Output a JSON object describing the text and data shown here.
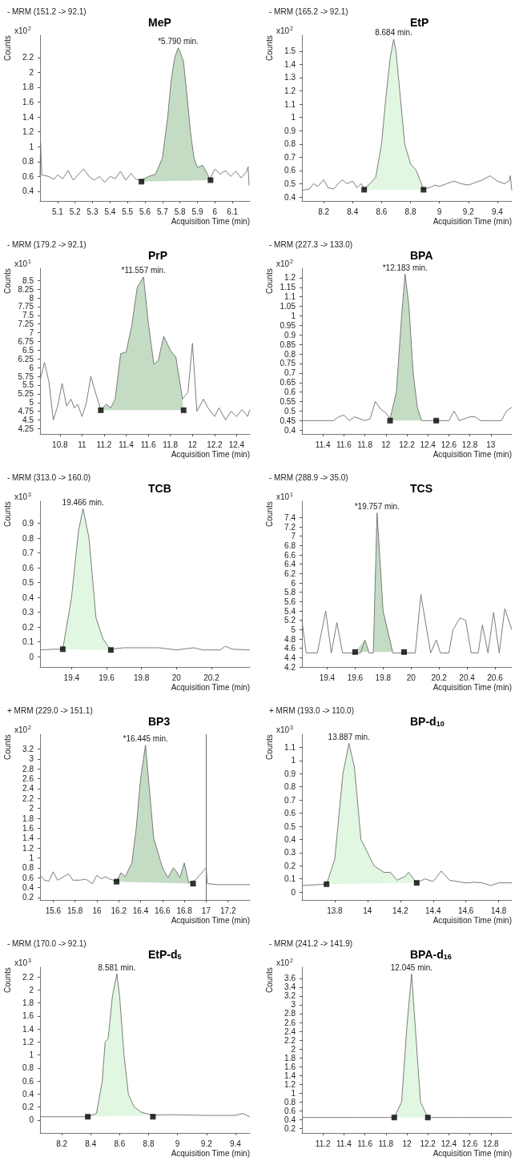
{
  "chart_data": [
    {
      "type": "line",
      "title": "MeP",
      "subtitle": "- MRM (151.2 -> 92.1)",
      "xlabel": "Acquisition Time (min)",
      "ylabel": "Counts",
      "annotations": [
        "x10$^{2}$",
        {
          "text": "*5.790 min.",
          "x": 5.79,
          "y": 2.33
        }
      ],
      "xlim": [
        5.0,
        6.2
      ],
      "xticks": [
        5.1,
        5.2,
        5.3,
        5.4,
        5.5,
        5.6,
        5.7,
        5.8,
        5.9,
        6,
        6.1
      ],
      "ylim": [
        0.27,
        2.5
      ],
      "yticks": [
        0.4,
        0.6,
        0.8,
        1,
        1.2,
        1.4,
        1.6,
        1.8,
        2,
        2.2
      ],
      "series": [
        {
          "type": "line",
          "marker": "none",
          "color": "#6e6e6e",
          "x": [
            5.0,
            5.003,
            5.01,
            5.05,
            5.08,
            5.1,
            5.13,
            5.16,
            5.19,
            5.22,
            5.25,
            5.28,
            5.31,
            5.34,
            5.37,
            5.4,
            5.43,
            5.46,
            5.49,
            5.52,
            5.55,
            5.58,
            5.62,
            5.66,
            5.7,
            5.73,
            5.75,
            5.77,
            5.79,
            5.8,
            5.82,
            5.84,
            5.86,
            5.88,
            5.9,
            5.93,
            5.96,
            5.97,
            6.0,
            6.03,
            6.06,
            6.09,
            6.12,
            6.15,
            6.18,
            6.19,
            6.195
          ],
          "values": [
            0.6,
            1.05,
            0.62,
            0.6,
            0.56,
            0.62,
            0.57,
            0.68,
            0.55,
            0.63,
            0.7,
            0.6,
            0.55,
            0.6,
            0.52,
            0.6,
            0.57,
            0.67,
            0.55,
            0.64,
            0.56,
            0.55,
            0.6,
            0.63,
            0.85,
            1.4,
            1.9,
            2.2,
            2.33,
            2.28,
            2.15,
            1.7,
            1.2,
            0.85,
            0.72,
            0.75,
            0.62,
            0.56,
            0.7,
            0.63,
            0.68,
            0.6,
            0.67,
            0.58,
            0.66,
            0.73,
            0.48
          ]
        },
        {
          "type": "area",
          "color": "#c4dcc4",
          "x": [
            5.58,
            5.58,
            5.62,
            5.66,
            5.7,
            5.73,
            5.75,
            5.77,
            5.79,
            5.8,
            5.82,
            5.84,
            5.86,
            5.88,
            5.9,
            5.93,
            5.96,
            5.97,
            5.975
          ],
          "values": [
            0.53,
            0.55,
            0.6,
            0.63,
            0.85,
            1.4,
            1.9,
            2.2,
            2.33,
            2.28,
            2.15,
            1.7,
            1.2,
            0.85,
            0.72,
            0.75,
            0.62,
            0.56,
            0.55
          ]
        },
        {
          "type": "scatter",
          "marker": "square",
          "color": "#000000",
          "x": [
            5.58,
            5.975
          ],
          "values": [
            0.53,
            0.55
          ]
        }
      ]
    },
    {
      "type": "line",
      "title": "EtP",
      "subtitle": "- MRM (165.2 -> 92.1)",
      "xlabel": "Acquisition Time (min)",
      "ylabel": "Counts",
      "annotations": [
        "x10$^{2}$",
        {
          "text": "8.684 min.",
          "x": 8.684,
          "y": 1.59
        }
      ],
      "xlim": [
        8.05,
        9.5
      ],
      "xticks": [
        8.2,
        8.4,
        8.6,
        8.8,
        9,
        9.2,
        9.4
      ],
      "ylim": [
        0.37,
        1.62
      ],
      "yticks": [
        0.4,
        0.5,
        0.6,
        0.7,
        0.8,
        0.9,
        1,
        1.1,
        1.2,
        1.3,
        1.4,
        1.5
      ],
      "series": [
        {
          "type": "line",
          "marker": "none",
          "color": "#6e6e6e",
          "x": [
            8.05,
            8.1,
            8.13,
            8.16,
            8.2,
            8.23,
            8.27,
            8.3,
            8.33,
            8.36,
            8.4,
            8.43,
            8.46,
            8.48,
            8.52,
            8.56,
            8.6,
            8.63,
            8.66,
            8.684,
            8.7,
            8.73,
            8.76,
            8.8,
            8.84,
            8.89,
            8.93,
            8.97,
            9.0,
            9.05,
            9.1,
            9.15,
            9.2,
            9.25,
            9.3,
            9.35,
            9.4,
            9.45,
            9.48,
            9.49,
            9.5
          ],
          "values": [
            0.45,
            0.46,
            0.5,
            0.48,
            0.53,
            0.47,
            0.46,
            0.5,
            0.53,
            0.5,
            0.52,
            0.47,
            0.5,
            0.46,
            0.5,
            0.55,
            0.8,
            1.15,
            1.45,
            1.59,
            1.5,
            1.15,
            0.8,
            0.65,
            0.6,
            0.46,
            0.47,
            0.49,
            0.48,
            0.5,
            0.52,
            0.5,
            0.49,
            0.51,
            0.53,
            0.56,
            0.52,
            0.5,
            0.52,
            0.56,
            0.45
          ]
        },
        {
          "type": "area",
          "color": "#e2f7e2",
          "x": [
            8.48,
            8.48,
            8.52,
            8.56,
            8.6,
            8.63,
            8.66,
            8.684,
            8.7,
            8.73,
            8.76,
            8.8,
            8.84,
            8.89,
            8.89
          ],
          "values": [
            0.455,
            0.46,
            0.5,
            0.55,
            0.8,
            1.15,
            1.45,
            1.59,
            1.5,
            1.15,
            0.8,
            0.65,
            0.6,
            0.46,
            0.455
          ]
        },
        {
          "type": "scatter",
          "marker": "square",
          "color": "#000000",
          "x": [
            8.48,
            8.89
          ],
          "values": [
            0.455,
            0.455
          ]
        }
      ]
    },
    {
      "type": "line",
      "title": "PrP",
      "subtitle": "- MRM (179.2 -> 92.1)",
      "xlabel": "Acquisition Time (min)",
      "ylabel": "Counts",
      "annotations": [
        "x10$^{1}$",
        {
          "text": "*11.557 min.",
          "x": 11.557,
          "y": 8.6
        }
      ],
      "xlim": [
        10.62,
        12.52
      ],
      "xticks": [
        10.8,
        11,
        11.2,
        11.4,
        11.6,
        11.8,
        12,
        12.2,
        12.4
      ],
      "ylim": [
        4.1,
        8.85
      ],
      "yticks": [
        4.25,
        4.5,
        4.75,
        5,
        5.25,
        5.5,
        5.75,
        6,
        6.25,
        6.5,
        6.75,
        7,
        7.25,
        7.5,
        7.75,
        8,
        8.25,
        8.5
      ],
      "series": [
        {
          "type": "line",
          "marker": "none",
          "color": "#6e6e6e",
          "x": [
            10.62,
            10.66,
            10.7,
            10.74,
            10.78,
            10.82,
            10.86,
            10.9,
            10.93,
            10.96,
            11.0,
            11.04,
            11.08,
            11.13,
            11.17,
            11.22,
            11.26,
            11.3,
            11.35,
            11.4,
            11.45,
            11.5,
            11.557,
            11.6,
            11.65,
            11.69,
            11.74,
            11.8,
            11.85,
            11.91,
            11.96,
            12.0,
            12.04,
            12.1,
            12.14,
            12.2,
            12.24,
            12.3,
            12.35,
            12.4,
            12.45,
            12.5,
            12.52
          ],
          "values": [
            5.65,
            6.15,
            5.6,
            4.5,
            4.9,
            5.55,
            4.9,
            5.1,
            4.85,
            4.95,
            4.6,
            5.0,
            5.75,
            5.2,
            4.8,
            4.95,
            4.85,
            5.1,
            6.4,
            6.45,
            7.2,
            8.3,
            8.6,
            7.3,
            6.1,
            6.2,
            6.9,
            6.5,
            6.3,
            5.1,
            5.3,
            6.7,
            4.75,
            5.1,
            4.85,
            4.6,
            4.85,
            4.5,
            4.75,
            4.6,
            4.8,
            4.6,
            4.8
          ]
        },
        {
          "type": "area",
          "color": "#c4dcc4",
          "x": [
            11.17,
            11.17,
            11.22,
            11.26,
            11.3,
            11.35,
            11.4,
            11.45,
            11.5,
            11.557,
            11.6,
            11.65,
            11.69,
            11.74,
            11.8,
            11.85,
            11.91,
            11.92
          ],
          "values": [
            4.78,
            4.8,
            4.95,
            4.85,
            5.1,
            6.4,
            6.45,
            7.2,
            8.3,
            8.6,
            7.3,
            6.1,
            6.2,
            6.9,
            6.5,
            6.3,
            5.1,
            4.78
          ]
        },
        {
          "type": "scatter",
          "marker": "square",
          "color": "#000000",
          "x": [
            11.17,
            11.92
          ],
          "values": [
            4.78,
            4.78
          ]
        }
      ]
    },
    {
      "type": "line",
      "title": "BPA",
      "subtitle": "- MRM (227.3 -> 133.0)",
      "xlabel": "Acquisition Time (min)",
      "ylabel": "Counts",
      "annotations": [
        "x10$^{2}$",
        {
          "text": "*12.183 min.",
          "x": 12.183,
          "y": 1.22
        }
      ],
      "xlim": [
        11.2,
        13.2
      ],
      "xticks": [
        11.4,
        11.6,
        11.8,
        12,
        12.2,
        12.4,
        12.6,
        12.8,
        13
      ],
      "ylim": [
        0.38,
        1.25
      ],
      "yticks": [
        0.4,
        0.45,
        0.5,
        0.55,
        0.6,
        0.65,
        0.7,
        0.75,
        0.8,
        0.85,
        0.9,
        0.95,
        1,
        1.05,
        1.1,
        1.15,
        1.2
      ],
      "series": [
        {
          "type": "line",
          "marker": "none",
          "color": "#6e6e6e",
          "x": [
            11.2,
            11.5,
            11.55,
            11.6,
            11.65,
            11.7,
            11.75,
            11.8,
            11.85,
            11.9,
            11.95,
            12.0,
            12.04,
            12.1,
            12.15,
            12.183,
            12.22,
            12.26,
            12.3,
            12.34,
            12.48,
            12.6,
            12.65,
            12.7,
            12.75,
            12.8,
            12.85,
            12.9,
            13.0,
            13.1,
            13.15,
            13.2
          ],
          "values": [
            0.45,
            0.45,
            0.47,
            0.48,
            0.45,
            0.47,
            0.46,
            0.45,
            0.46,
            0.55,
            0.51,
            0.49,
            0.46,
            0.6,
            1.0,
            1.22,
            1.05,
            0.7,
            0.52,
            0.45,
            0.45,
            0.45,
            0.5,
            0.45,
            0.46,
            0.47,
            0.47,
            0.45,
            0.45,
            0.45,
            0.5,
            0.52
          ]
        },
        {
          "type": "area",
          "color": "#c4dcc4",
          "x": [
            12.04,
            12.04,
            12.1,
            12.15,
            12.183,
            12.22,
            12.26,
            12.3,
            12.34,
            12.48
          ],
          "values": [
            0.45,
            0.46,
            0.6,
            1.0,
            1.22,
            1.05,
            0.7,
            0.52,
            0.45,
            0.45
          ]
        },
        {
          "type": "scatter",
          "marker": "square",
          "color": "#000000",
          "x": [
            12.04,
            12.48
          ],
          "values": [
            0.45,
            0.45
          ]
        }
      ]
    },
    {
      "type": "line",
      "title": "TCB",
      "subtitle": "- MRM (313.0 -> 160.0)",
      "xlabel": "Acquisition Time (min)",
      "ylabel": "Counts",
      "annotations": [
        "x10$^{3}$",
        {
          "text": "19.466 min.",
          "x": 19.466,
          "y": 1.0
        }
      ],
      "xlim": [
        19.22,
        20.42
      ],
      "xticks": [
        19.4,
        19.6,
        19.8,
        20,
        20.2
      ],
      "ylim": [
        -0.07,
        1.05
      ],
      "yticks": [
        0,
        0.1,
        0.2,
        0.3,
        0.4,
        0.5,
        0.6,
        0.7,
        0.8,
        0.9
      ],
      "series": [
        {
          "type": "line",
          "marker": "none",
          "color": "#6e6e6e",
          "x": [
            19.22,
            19.3,
            19.35,
            19.4,
            19.44,
            19.466,
            19.5,
            19.54,
            19.58,
            19.62,
            19.7,
            19.8,
            19.9,
            20.0,
            20.1,
            20.15,
            20.25,
            20.28,
            20.32,
            20.42
          ],
          "values": [
            0.045,
            0.05,
            0.05,
            0.4,
            0.85,
            1.0,
            0.8,
            0.26,
            0.12,
            0.05,
            0.06,
            0.06,
            0.06,
            0.045,
            0.06,
            0.045,
            0.045,
            0.07,
            0.05,
            0.045
          ]
        },
        {
          "type": "area",
          "color": "#e2f7e2",
          "x": [
            19.35,
            19.4,
            19.44,
            19.466,
            19.5,
            19.54,
            19.58,
            19.62,
            19.625
          ],
          "values": [
            0.05,
            0.4,
            0.85,
            1.0,
            0.8,
            0.26,
            0.12,
            0.05,
            0.045
          ]
        },
        {
          "type": "scatter",
          "marker": "square",
          "color": "#000000",
          "x": [
            19.35,
            19.625
          ],
          "values": [
            0.05,
            0.045
          ]
        }
      ]
    },
    {
      "type": "line",
      "title": "TCS",
      "subtitle": "- MRM (288.9 -> 35.0)",
      "xlabel": "Acquisition Time (min)",
      "ylabel": "Counts",
      "annotations": [
        "x10$^{1}$",
        {
          "text": "*19.757 min.",
          "x": 19.757,
          "y": 7.5
        }
      ],
      "xlim": [
        19.22,
        20.72
      ],
      "xticks": [
        19.4,
        19.6,
        19.8,
        20,
        20.2,
        20.4,
        20.6
      ],
      "ylim": [
        4.2,
        7.75
      ],
      "yticks": [
        4.2,
        4.4,
        4.6,
        4.8,
        5,
        5.2,
        5.4,
        5.6,
        5.8,
        6,
        6.2,
        6.4,
        6.6,
        6.8,
        7,
        7.2,
        7.4
      ],
      "series": [
        {
          "type": "line",
          "marker": "none",
          "color": "#6e6e6e",
          "x": [
            19.22,
            19.25,
            19.33,
            19.39,
            19.43,
            19.47,
            19.51,
            19.6,
            19.64,
            19.67,
            19.7,
            19.73,
            19.757,
            19.8,
            19.87,
            20.03,
            20.07,
            20.14,
            20.18,
            20.21,
            20.27,
            20.3,
            20.35,
            20.39,
            20.43,
            20.48,
            20.51,
            20.55,
            20.59,
            20.63,
            20.67,
            20.72
          ],
          "values": [
            5.2,
            4.5,
            4.5,
            5.4,
            4.5,
            5.15,
            4.5,
            4.5,
            4.5,
            4.78,
            4.5,
            4.5,
            7.5,
            5.4,
            4.5,
            4.5,
            5.75,
            4.5,
            4.78,
            4.5,
            4.5,
            5.0,
            5.25,
            5.2,
            4.5,
            4.5,
            5.1,
            4.5,
            5.37,
            4.5,
            5.45,
            5.0
          ]
        },
        {
          "type": "area",
          "color": "#c4dcc4",
          "x": [
            19.6,
            19.67,
            19.7,
            19.73,
            19.757,
            19.8,
            19.87,
            19.95
          ],
          "values": [
            4.52,
            4.78,
            4.52,
            4.52,
            7.5,
            5.4,
            4.52,
            4.52
          ]
        },
        {
          "type": "scatter",
          "marker": "square",
          "color": "#000000",
          "x": [
            19.6,
            19.95
          ],
          "values": [
            4.52,
            4.52
          ]
        }
      ]
    },
    {
      "type": "line",
      "title": "BP3",
      "subtitle": "+ MRM (229.0 -> 151.1)",
      "xlabel": "Acquisition Time (min)",
      "ylabel": "Counts",
      "annotations": [
        "x10$^{2}$",
        {
          "text": "*16.445 min.",
          "x": 16.445,
          "y": 3.28
        }
      ],
      "xlim": [
        15.48,
        17.4
      ],
      "xticks": [
        15.6,
        15.8,
        16,
        16.2,
        16.4,
        16.6,
        16.8,
        17,
        17.2
      ],
      "ylim": [
        0.15,
        3.5
      ],
      "yticks": [
        0.2,
        0.4,
        0.6,
        0.8,
        1,
        1.2,
        1.4,
        1.6,
        1.8,
        2,
        2.2,
        2.4,
        2.6,
        2.8,
        3,
        3.2
      ],
      "ref_lines": [
        {
          "axis": "x",
          "value": 17,
          "color": "#6e6e6e"
        }
      ],
      "series": [
        {
          "type": "line",
          "marker": "none",
          "color": "#6e6e6e",
          "x": [
            15.48,
            15.52,
            15.56,
            15.6,
            15.64,
            15.68,
            15.74,
            15.78,
            15.84,
            15.9,
            15.96,
            16.0,
            16.04,
            16.08,
            16.12,
            16.18,
            16.22,
            16.26,
            16.32,
            16.36,
            16.4,
            16.445,
            16.48,
            16.52,
            16.56,
            16.6,
            16.65,
            16.7,
            16.72,
            16.76,
            16.8,
            16.84,
            16.9,
            16.96,
            17.0,
            17.01,
            17.1,
            17.2,
            17.3,
            17.4
          ],
          "values": [
            0.65,
            0.55,
            0.53,
            0.72,
            0.55,
            0.6,
            0.68,
            0.55,
            0.55,
            0.57,
            0.48,
            0.65,
            0.58,
            0.62,
            0.57,
            0.53,
            0.7,
            0.62,
            0.9,
            1.6,
            2.6,
            3.28,
            2.4,
            1.4,
            1.1,
            0.8,
            0.6,
            0.8,
            0.75,
            0.6,
            0.9,
            0.5,
            0.55,
            0.7,
            0.8,
            0.48,
            0.46,
            0.46,
            0.46,
            0.46
          ]
        },
        {
          "type": "area",
          "color": "#c4dcc4",
          "x": [
            16.18,
            16.18,
            16.22,
            16.26,
            16.32,
            16.36,
            16.4,
            16.445,
            16.48,
            16.52,
            16.56,
            16.6,
            16.65,
            16.7,
            16.72,
            16.76,
            16.8,
            16.84,
            16.88
          ],
          "values": [
            0.52,
            0.53,
            0.7,
            0.62,
            0.9,
            1.6,
            2.6,
            3.28,
            2.4,
            1.4,
            1.1,
            0.8,
            0.6,
            0.8,
            0.75,
            0.6,
            0.9,
            0.5,
            0.48
          ]
        },
        {
          "type": "scatter",
          "marker": "square",
          "color": "#000000",
          "x": [
            16.18,
            16.88
          ],
          "values": [
            0.52,
            0.48
          ]
        }
      ]
    },
    {
      "type": "line",
      "title": "BP-d$_{10}$",
      "subtitle": "+ MRM (193.0 -> 110.0)",
      "xlabel": "Acquisition Time (min)",
      "ylabel": "Counts",
      "annotations": [
        "x10$^{3}$",
        {
          "text": "13.887 min.",
          "x": 13.887,
          "y": 1.13
        }
      ],
      "xlim": [
        13.6,
        14.88
      ],
      "xticks": [
        13.8,
        14,
        14.2,
        14.4,
        14.6,
        14.8
      ],
      "ylim": [
        -0.06,
        1.2
      ],
      "yticks": [
        0,
        0.1,
        0.2,
        0.3,
        0.4,
        0.5,
        0.6,
        0.7,
        0.8,
        0.9,
        1,
        1.1
      ],
      "series": [
        {
          "type": "line",
          "marker": "none",
          "color": "#6e6e6e",
          "x": [
            13.6,
            13.75,
            13.8,
            13.85,
            13.887,
            13.92,
            13.96,
            14.0,
            14.04,
            14.1,
            14.14,
            14.18,
            14.23,
            14.25,
            14.3,
            14.35,
            14.4,
            14.45,
            14.5,
            14.55,
            14.6,
            14.65,
            14.7,
            14.75,
            14.8,
            14.88
          ],
          "values": [
            0.05,
            0.06,
            0.25,
            0.9,
            1.13,
            0.95,
            0.4,
            0.3,
            0.2,
            0.15,
            0.15,
            0.09,
            0.12,
            0.15,
            0.07,
            0.1,
            0.08,
            0.16,
            0.09,
            0.08,
            0.07,
            0.075,
            0.07,
            0.05,
            0.07,
            0.07
          ]
        },
        {
          "type": "area",
          "color": "#e2f7e2",
          "x": [
            13.75,
            13.8,
            13.85,
            13.887,
            13.92,
            13.96,
            14.0,
            14.04,
            14.1,
            14.14,
            14.18,
            14.23,
            14.25,
            14.3
          ],
          "values": [
            0.06,
            0.25,
            0.9,
            1.13,
            0.95,
            0.4,
            0.3,
            0.2,
            0.15,
            0.15,
            0.09,
            0.12,
            0.15,
            0.07
          ]
        },
        {
          "type": "scatter",
          "marker": "square",
          "color": "#000000",
          "x": [
            13.75,
            14.3
          ],
          "values": [
            0.06,
            0.07
          ]
        }
      ]
    },
    {
      "type": "line",
      "title": "EtP-d$_{5}$",
      "subtitle": "- MRM (170.0 -> 92.1)",
      "xlabel": "Acquisition Time (min)",
      "ylabel": "Counts",
      "annotations": [
        "x10$^{3}$",
        {
          "text": "8.581 min.",
          "x": 8.581,
          "y": 2.25
        }
      ],
      "xlim": [
        8.05,
        9.5
      ],
      "xticks": [
        8.2,
        8.4,
        8.6,
        8.8,
        9,
        9.2,
        9.4
      ],
      "ylim": [
        -0.2,
        2.35
      ],
      "yticks": [
        0,
        0.2,
        0.4,
        0.6,
        0.8,
        1,
        1.2,
        1.4,
        1.6,
        1.8,
        2,
        2.2
      ],
      "series": [
        {
          "type": "line",
          "marker": "none",
          "color": "#6e6e6e",
          "x": [
            8.05,
            8.2,
            8.35,
            8.38,
            8.44,
            8.48,
            8.5,
            8.52,
            8.55,
            8.581,
            8.6,
            8.63,
            8.66,
            8.7,
            8.75,
            8.83,
            8.9,
            9.0,
            9.2,
            9.4,
            9.45,
            9.5
          ],
          "values": [
            0.05,
            0.05,
            0.05,
            0.05,
            0.1,
            0.6,
            1.2,
            1.25,
            1.9,
            2.25,
            1.9,
            1.0,
            0.4,
            0.2,
            0.12,
            0.07,
            0.08,
            0.08,
            0.07,
            0.07,
            0.1,
            0.05
          ]
        },
        {
          "type": "area",
          "color": "#e2f7e2",
          "x": [
            8.38,
            8.44,
            8.48,
            8.5,
            8.52,
            8.55,
            8.581,
            8.6,
            8.63,
            8.66,
            8.7,
            8.75,
            8.83
          ],
          "values": [
            0.05,
            0.1,
            0.6,
            1.2,
            1.25,
            1.9,
            2.25,
            1.9,
            1.0,
            0.4,
            0.2,
            0.12,
            0.07
          ]
        },
        {
          "type": "scatter",
          "marker": "square",
          "color": "#000000",
          "x": [
            8.38,
            8.83
          ],
          "values": [
            0.05,
            0.05
          ]
        }
      ]
    },
    {
      "type": "line",
      "title": "BPA-d$_{16}$",
      "subtitle": "- MRM (241.2 -> 141.9)",
      "xlabel": "Acquisition Time (min)",
      "ylabel": "Counts",
      "annotations": [
        "x10$^{2}$",
        {
          "text": "12.045 min.",
          "x": 12.045,
          "y": 3.7
        }
      ],
      "xlim": [
        11.0,
        13.0
      ],
      "xticks": [
        11.2,
        11.4,
        11.6,
        11.8,
        12,
        12.2,
        12.4,
        12.6,
        12.8
      ],
      "ylim": [
        0.1,
        3.85
      ],
      "yticks": [
        0.2,
        0.4,
        0.6,
        0.8,
        1,
        1.2,
        1.4,
        1.6,
        1.8,
        2,
        2.2,
        2.4,
        2.6,
        2.8,
        3,
        3.2,
        3.4,
        3.6
      ],
      "series": [
        {
          "type": "line",
          "marker": "none",
          "color": "#6e6e6e",
          "x": [
            11.0,
            11.5,
            11.88,
            11.95,
            12.0,
            12.045,
            12.08,
            12.13,
            12.2,
            12.5,
            13.0
          ],
          "values": [
            0.45,
            0.45,
            0.45,
            0.8,
            2.5,
            3.7,
            2.5,
            0.8,
            0.45,
            0.45,
            0.45
          ]
        },
        {
          "type": "area",
          "color": "#e2f7e2",
          "x": [
            11.88,
            11.95,
            12.0,
            12.045,
            12.08,
            12.13,
            12.2
          ],
          "values": [
            0.45,
            0.8,
            2.5,
            3.7,
            2.5,
            0.8,
            0.45
          ]
        },
        {
          "type": "scatter",
          "marker": "square",
          "color": "#000000",
          "x": [
            11.88,
            12.2
          ],
          "values": [
            0.45,
            0.45
          ]
        }
      ]
    }
  ]
}
